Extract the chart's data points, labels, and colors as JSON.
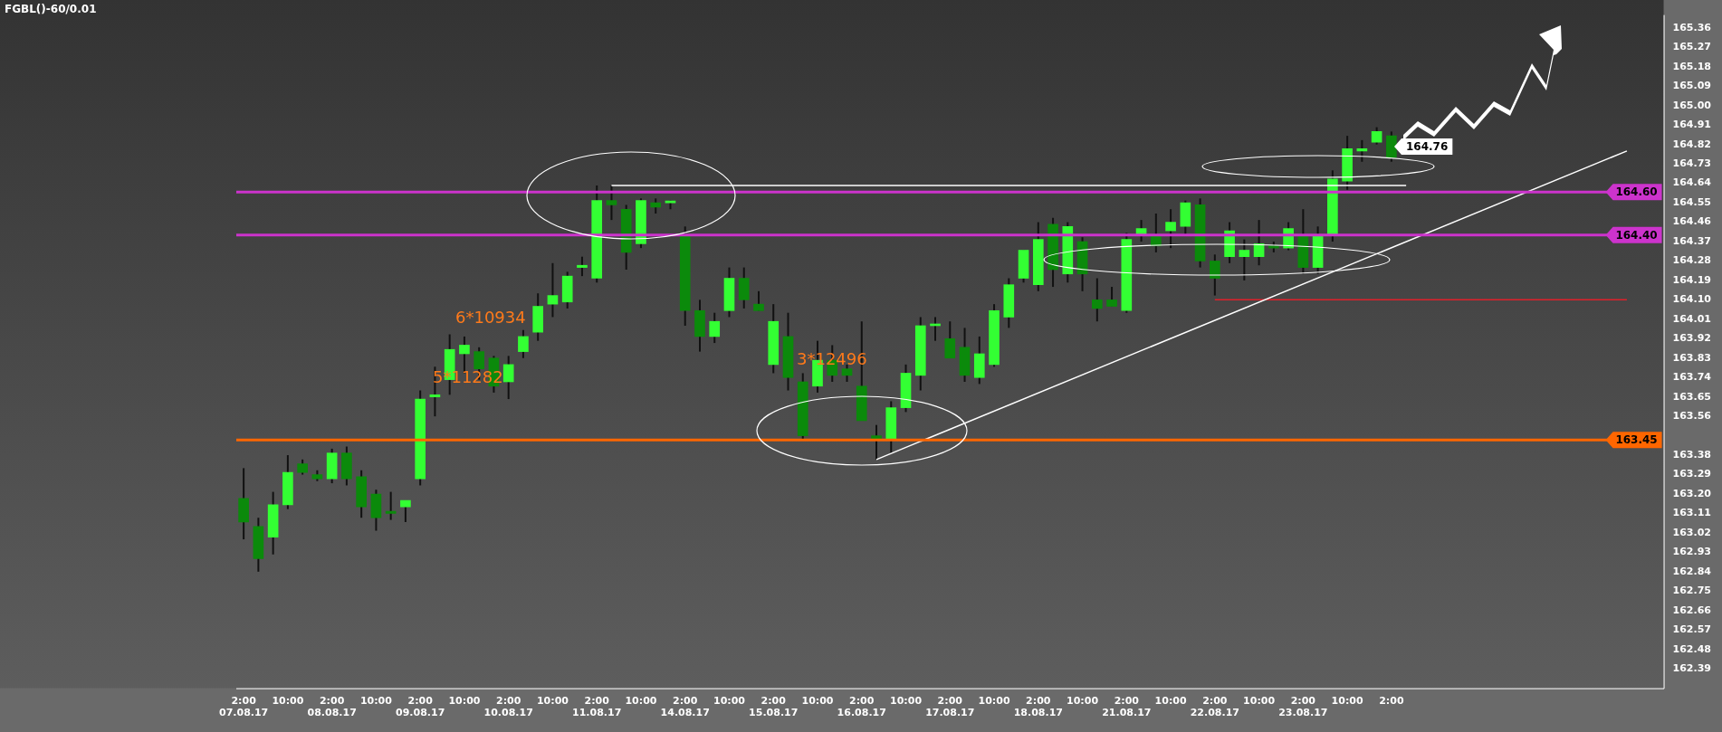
{
  "chart_data": {
    "type": "candlestick",
    "title": "FGBL()-60/0.01",
    "categories": [
      "2:00",
      null,
      null,
      "10:00",
      null,
      null,
      "2:00",
      null,
      null,
      "10:00",
      null,
      null,
      "2:00",
      null,
      null,
      "10:00",
      null,
      null,
      "2:00",
      null,
      null,
      "10:00",
      null,
      null,
      "2:00",
      null,
      null,
      "10:00",
      null,
      null,
      "2:00",
      null,
      null,
      "10:00",
      null,
      null,
      "2:00",
      null,
      null,
      "10:00",
      null,
      null,
      "2:00",
      null,
      null,
      "10:00",
      null,
      null,
      "2:00",
      null,
      null,
      "10:00",
      null,
      null,
      "2:00",
      null,
      null,
      "10:00",
      null,
      null,
      "2:00",
      null,
      null,
      "10:00",
      null,
      null,
      "2:00",
      null,
      null,
      "10:00",
      null,
      null,
      "2:00",
      null,
      null,
      "10:00",
      null,
      null,
      "2:00",
      null,
      null,
      null,
      null,
      null,
      null,
      null,
      null,
      null,
      null,
      null,
      null,
      null,
      null,
      null,
      null,
      null,
      null
    ],
    "ohlc": [
      [
        163.18,
        163.32,
        162.99,
        163.07
      ],
      [
        163.05,
        163.09,
        162.84,
        162.9
      ],
      [
        163.0,
        163.21,
        162.92,
        163.15
      ],
      [
        163.15,
        163.38,
        163.13,
        163.3
      ],
      [
        163.34,
        163.36,
        163.29,
        163.3
      ],
      [
        163.29,
        163.31,
        163.26,
        163.27
      ],
      [
        163.27,
        163.41,
        163.25,
        163.39
      ],
      [
        163.39,
        163.42,
        163.24,
        163.27
      ],
      [
        163.28,
        163.31,
        163.09,
        163.14
      ],
      [
        163.2,
        163.22,
        163.03,
        163.09
      ],
      [
        163.12,
        163.21,
        163.08,
        163.11
      ],
      [
        163.14,
        163.17,
        163.07,
        163.17
      ],
      [
        163.27,
        163.68,
        163.24,
        163.64
      ],
      [
        163.65,
        163.79,
        163.56,
        163.66
      ],
      [
        163.73,
        163.94,
        163.66,
        163.87
      ],
      [
        163.85,
        163.93,
        163.76,
        163.89
      ],
      [
        163.86,
        163.88,
        163.73,
        163.78
      ],
      [
        163.83,
        163.84,
        163.67,
        163.7
      ],
      [
        163.72,
        163.84,
        163.64,
        163.8
      ],
      [
        163.86,
        163.96,
        163.83,
        163.93
      ],
      [
        163.95,
        164.13,
        163.91,
        164.07
      ],
      [
        164.08,
        164.27,
        164.02,
        164.12
      ],
      [
        164.09,
        164.23,
        164.06,
        164.21
      ],
      [
        164.25,
        164.3,
        164.21,
        164.26
      ],
      [
        164.2,
        164.63,
        164.18,
        164.56
      ],
      [
        164.56,
        164.63,
        164.47,
        164.54
      ],
      [
        164.52,
        164.54,
        164.24,
        164.32
      ],
      [
        164.36,
        164.57,
        164.34,
        164.56
      ],
      [
        164.55,
        164.57,
        164.5,
        164.53
      ],
      [
        164.55,
        164.56,
        164.52,
        164.55
      ],
      [
        164.4,
        164.44,
        163.98,
        164.05
      ],
      [
        164.05,
        164.1,
        163.86,
        163.93
      ],
      [
        163.93,
        164.04,
        163.9,
        164.0
      ],
      [
        164.05,
        164.25,
        164.02,
        164.2
      ],
      [
        164.2,
        164.25,
        164.06,
        164.1
      ],
      [
        164.08,
        164.14,
        164.05,
        164.05
      ],
      [
        163.8,
        164.08,
        163.76,
        164.0
      ],
      [
        163.93,
        164.04,
        163.68,
        163.74
      ],
      [
        163.72,
        163.76,
        163.45,
        163.47
      ],
      [
        163.7,
        163.91,
        163.67,
        163.82
      ],
      [
        163.82,
        163.89,
        163.72,
        163.75
      ],
      [
        163.78,
        163.8,
        163.72,
        163.75
      ],
      [
        163.7,
        164.0,
        163.54,
        163.54
      ],
      [
        163.47,
        163.52,
        163.36,
        163.45
      ],
      [
        163.45,
        163.63,
        163.39,
        163.6
      ],
      [
        163.6,
        163.8,
        163.58,
        163.76
      ],
      [
        163.75,
        164.02,
        163.68,
        163.98
      ],
      [
        163.98,
        164.02,
        163.91,
        163.98
      ],
      [
        163.92,
        164.0,
        163.83,
        163.83
      ],
      [
        163.88,
        163.97,
        163.72,
        163.75
      ],
      [
        163.74,
        163.93,
        163.71,
        163.85
      ],
      [
        163.8,
        164.08,
        163.79,
        164.05
      ],
      [
        164.02,
        164.2,
        163.97,
        164.17
      ],
      [
        164.2,
        164.33,
        164.18,
        164.33
      ],
      [
        164.17,
        164.46,
        164.14,
        164.38
      ],
      [
        164.45,
        164.48,
        164.16,
        164.24
      ],
      [
        164.22,
        164.46,
        164.18,
        164.44
      ],
      [
        164.37,
        164.39,
        164.14,
        164.22
      ],
      [
        164.1,
        164.2,
        164.0,
        164.06
      ],
      [
        164.1,
        164.16,
        164.07,
        164.07
      ],
      [
        164.05,
        164.41,
        164.04,
        164.38
      ],
      [
        164.4,
        164.47,
        164.37,
        164.43
      ],
      [
        164.4,
        164.5,
        164.32,
        164.35
      ],
      [
        164.42,
        164.52,
        164.34,
        164.46
      ],
      [
        164.44,
        164.56,
        164.4,
        164.55
      ],
      [
        164.54,
        164.57,
        164.25,
        164.28
      ],
      [
        164.28,
        164.31,
        164.12,
        164.2
      ],
      [
        164.3,
        164.46,
        164.27,
        164.42
      ],
      [
        164.3,
        164.38,
        164.19,
        164.33
      ],
      [
        164.3,
        164.47,
        164.26,
        164.36
      ],
      [
        164.35,
        164.37,
        164.32,
        164.34
      ],
      [
        164.34,
        164.46,
        164.33,
        164.43
      ],
      [
        164.4,
        164.52,
        164.22,
        164.25
      ],
      [
        164.25,
        164.44,
        164.22,
        164.4
      ],
      [
        164.4,
        164.7,
        164.37,
        164.66
      ],
      [
        164.65,
        164.86,
        164.61,
        164.8
      ],
      [
        164.79,
        164.84,
        164.74,
        164.8
      ],
      [
        164.83,
        164.9,
        164.82,
        164.88
      ],
      [
        164.86,
        164.88,
        164.74,
        164.76
      ],
      null,
      null,
      null,
      null,
      null,
      null,
      null,
      null,
      null,
      null,
      null,
      null,
      null,
      null,
      null,
      null,
      null,
      null
    ],
    "series": [
      {
        "type": "line",
        "color": "#ffffff",
        "values": [
          null,
          null,
          null,
          null,
          null,
          null,
          null,
          null,
          null,
          null,
          null,
          null,
          null,
          null,
          null,
          null,
          null,
          null,
          null,
          null,
          null,
          null,
          null,
          null,
          null,
          null,
          null,
          null,
          null,
          null,
          null,
          null,
          null,
          null,
          null,
          null,
          null,
          null,
          null,
          null,
          null,
          null,
          null,
          163.36,
          null,
          null,
          null,
          null,
          null,
          null,
          null,
          null,
          null,
          null,
          null,
          null,
          null,
          null,
          null,
          null,
          null,
          null,
          null,
          null,
          null,
          null,
          null,
          null,
          null,
          null,
          null,
          null,
          null,
          null,
          null,
          null,
          null,
          null,
          null,
          null,
          null,
          null,
          null,
          null,
          null,
          null,
          null,
          null,
          null,
          null,
          null,
          null,
          null,
          null,
          164.79,
          null,
          null
        ]
      },
      {
        "type": "line",
        "color": "#ffffff",
        "values": [
          null,
          null,
          null,
          null,
          null,
          null,
          null,
          null,
          null,
          null,
          null,
          null,
          null,
          null,
          null,
          null,
          null,
          null,
          null,
          null,
          null,
          null,
          null,
          null,
          null,
          164.63,
          null,
          null,
          null,
          null,
          null,
          null,
          null,
          null,
          null,
          null,
          null,
          null,
          null,
          null,
          null,
          null,
          null,
          null,
          null,
          null,
          null,
          null,
          null,
          null,
          null,
          null,
          null,
          null,
          null,
          null,
          null,
          null,
          null,
          null,
          null,
          null,
          null,
          null,
          null,
          null,
          null,
          null,
          null,
          null,
          null,
          null,
          null,
          null,
          null,
          null,
          null,
          null,
          null,
          164.63,
          null,
          null,
          null,
          null,
          null,
          null,
          null,
          null,
          null,
          null,
          null,
          null,
          null,
          null,
          null,
          null,
          null
        ]
      },
      {
        "type": "line",
        "color": "#e0202a",
        "values": [
          null,
          null,
          null,
          null,
          null,
          null,
          null,
          null,
          null,
          null,
          null,
          null,
          null,
          null,
          null,
          null,
          null,
          null,
          null,
          null,
          null,
          null,
          null,
          null,
          null,
          null,
          null,
          null,
          null,
          null,
          null,
          null,
          null,
          null,
          null,
          null,
          null,
          null,
          null,
          null,
          null,
          null,
          null,
          null,
          null,
          null,
          null,
          null,
          null,
          null,
          null,
          null,
          null,
          null,
          null,
          null,
          null,
          null,
          null,
          null,
          null,
          null,
          null,
          null,
          null,
          null,
          164.1,
          null,
          null,
          null,
          null,
          null,
          null,
          null,
          null,
          null,
          null,
          null,
          null,
          null,
          null,
          null,
          null,
          null,
          null,
          null,
          null,
          null,
          null,
          null,
          null,
          null,
          null,
          null,
          164.1,
          null,
          null
        ]
      }
    ],
    "ylim": [
      162.3,
      165.42
    ],
    "yticks": [
      162.39,
      162.48,
      162.57,
      162.66,
      162.75,
      162.84,
      162.93,
      163.02,
      163.11,
      {
        "value": 163.2,
        "label": "163.20"
      },
      163.29,
      163.38,
      163.56,
      163.65,
      163.74,
      163.83,
      163.92,
      164.01,
      {
        "value": 164.1,
        "label": "164.10"
      },
      164.19,
      164.28,
      164.37,
      164.46,
      164.55,
      164.64,
      164.73,
      164.82,
      164.91,
      {
        "value": 165,
        "label": "165.00"
      },
      165.09,
      165.18,
      165.27,
      165.36
    ],
    "ref_lines": [
      {
        "axis": "y",
        "value": 164.6,
        "label": "164.60",
        "color": "#cc33cc"
      },
      {
        "axis": "y",
        "value": 164.4,
        "label": "164.40",
        "color": "#cc33cc"
      },
      {
        "axis": "y",
        "value": 163.45,
        "label": "163.45",
        "color": "#ff6600"
      }
    ],
    "annotations": [
      "07.08.17",
      "08.08.17",
      "09.08.17",
      "10.08.17",
      "11.08.17",
      "14.08.17",
      "15.08.17",
      "16.08.17",
      "17.08.17",
      "18.08.17",
      "21.08.17",
      "22.08.17",
      "23.08.17",
      "6*10934",
      "5*11282",
      "3*12496",
      "164.76"
    ]
  }
}
